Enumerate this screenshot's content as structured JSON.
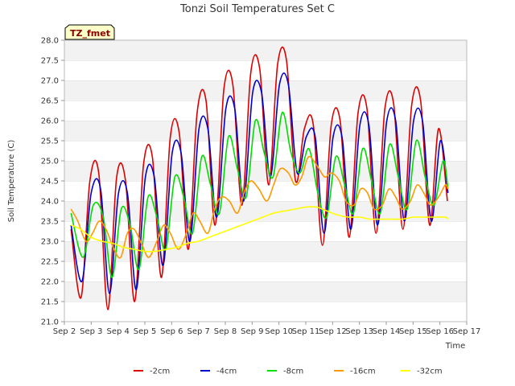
{
  "chart_data": {
    "type": "line",
    "title": "Tonzi Soil Temperatures Set C",
    "xlabel": "Time",
    "ylabel": "Soil Temperature (C)",
    "annotation": "TZ_fmet",
    "xlim": [
      2,
      17
    ],
    "ylim": [
      21.0,
      28.0
    ],
    "x_ticks": [
      2,
      3,
      4,
      5,
      6,
      7,
      8,
      9,
      10,
      11,
      12,
      13,
      14,
      15,
      16,
      17
    ],
    "x_tick_labels": [
      "Sep 2",
      "Sep 3",
      "Sep 4",
      "Sep 5",
      "Sep 6",
      "Sep 7",
      "Sep 8",
      "Sep 9",
      "Sep 10",
      "Sep 11",
      "Sep 12",
      "Sep 13",
      "Sep 14",
      "Sep 15",
      "Sep 16",
      "Sep 17"
    ],
    "y_ticks": [
      21.0,
      21.5,
      22.0,
      22.5,
      23.0,
      23.5,
      24.0,
      24.5,
      25.0,
      25.5,
      26.0,
      26.5,
      27.0,
      27.5,
      28.0
    ],
    "y_tick_labels": [
      "21.0",
      "21.5",
      "22.0",
      "22.5",
      "23.0",
      "23.5",
      "24.0",
      "24.5",
      "25.0",
      "25.5",
      "26.0",
      "26.5",
      "27.0",
      "27.5",
      "28.0"
    ],
    "grid": "horizontal bands",
    "legend_position": "bottom",
    "series": [
      {
        "name": "-2cm",
        "color": "#dd0000",
        "x": [
          2.25,
          2.62,
          2.95,
          3.28,
          3.62,
          3.95,
          4.28,
          4.62,
          4.95,
          5.28,
          5.62,
          5.95,
          6.28,
          6.62,
          6.95,
          7.28,
          7.62,
          7.95,
          8.28,
          8.62,
          8.95,
          9.28,
          9.62,
          9.95,
          10.28,
          10.62,
          10.95,
          11.28,
          11.62,
          11.95,
          12.28,
          12.62,
          12.95,
          13.28,
          13.62,
          13.95,
          14.28,
          14.62,
          14.95,
          15.28,
          15.62,
          15.95,
          16.28
        ],
        "y": [
          23.3,
          21.6,
          24.5,
          24.7,
          21.3,
          24.6,
          24.5,
          21.5,
          24.9,
          25.1,
          22.1,
          25.6,
          25.7,
          22.8,
          26.2,
          26.5,
          23.4,
          26.8,
          26.9,
          23.9,
          27.2,
          27.3,
          24.4,
          27.4,
          27.5,
          24.5,
          25.8,
          25.9,
          22.9,
          25.9,
          26.0,
          23.1,
          26.2,
          26.3,
          23.2,
          26.3,
          26.4,
          23.3,
          26.4,
          26.5,
          23.4,
          25.8,
          24.0
        ]
      },
      {
        "name": "-4cm",
        "color": "#0000cc",
        "x": [
          2.25,
          2.65,
          3.0,
          3.35,
          3.68,
          4.02,
          4.35,
          4.68,
          5.02,
          5.35,
          5.68,
          6.02,
          6.35,
          6.68,
          7.02,
          7.35,
          7.68,
          8.02,
          8.35,
          8.68,
          9.02,
          9.35,
          9.68,
          10.02,
          10.35,
          10.68,
          11.02,
          11.35,
          11.68,
          12.02,
          12.35,
          12.68,
          13.02,
          13.35,
          13.68,
          14.02,
          14.35,
          14.68,
          15.02,
          15.35,
          15.68,
          16.02,
          16.3
        ],
        "y": [
          23.4,
          22.0,
          24.2,
          24.3,
          21.7,
          24.2,
          24.2,
          21.8,
          24.6,
          24.6,
          22.4,
          25.2,
          25.2,
          23.0,
          25.8,
          25.8,
          23.6,
          26.3,
          26.3,
          24.0,
          26.7,
          26.7,
          24.6,
          26.9,
          26.9,
          24.7,
          25.6,
          25.6,
          23.2,
          25.6,
          25.6,
          23.3,
          25.9,
          25.9,
          23.4,
          26.0,
          26.0,
          23.5,
          26.0,
          26.0,
          23.5,
          25.5,
          24.2
        ]
      },
      {
        "name": "-8cm",
        "color": "#00dd00",
        "x": [
          2.25,
          2.7,
          3.08,
          3.45,
          3.78,
          4.12,
          4.45,
          4.78,
          5.12,
          5.45,
          5.78,
          6.12,
          6.45,
          6.78,
          7.12,
          7.45,
          7.78,
          8.12,
          8.45,
          8.78,
          9.12,
          9.45,
          9.78,
          10.12,
          10.45,
          10.78,
          11.12,
          11.45,
          11.78,
          12.12,
          12.45,
          12.78,
          13.12,
          13.45,
          13.78,
          14.12,
          14.45,
          14.78,
          15.12,
          15.45,
          15.78,
          16.12,
          16.3
        ],
        "y": [
          23.7,
          22.6,
          23.9,
          23.6,
          22.1,
          23.8,
          23.4,
          22.3,
          24.1,
          23.6,
          22.8,
          24.6,
          24.1,
          23.2,
          25.1,
          24.4,
          23.7,
          25.6,
          24.8,
          24.1,
          26.0,
          25.2,
          24.6,
          26.2,
          25.2,
          24.7,
          25.3,
          24.2,
          23.6,
          25.1,
          24.4,
          23.7,
          25.3,
          24.5,
          23.7,
          25.4,
          24.6,
          23.8,
          25.5,
          24.6,
          23.9,
          25.0,
          24.3
        ]
      },
      {
        "name": "-16cm",
        "color": "#ff9900",
        "x": [
          2.25,
          2.5,
          2.8,
          3.05,
          3.3,
          3.55,
          3.85,
          4.1,
          4.35,
          4.6,
          4.9,
          5.15,
          5.45,
          5.7,
          5.95,
          6.25,
          6.55,
          6.8,
          7.05,
          7.35,
          7.6,
          7.85,
          8.15,
          8.45,
          8.7,
          8.95,
          9.25,
          9.55,
          9.8,
          10.05,
          10.35,
          10.6,
          10.85,
          11.1,
          11.4,
          11.7,
          11.95,
          12.25,
          12.5,
          12.8,
          13.05,
          13.3,
          13.55,
          13.85,
          14.1,
          14.35,
          14.6,
          14.9,
          15.15,
          15.4,
          15.65,
          15.95,
          16.2,
          16.3
        ],
        "y": [
          23.8,
          23.5,
          23.0,
          23.2,
          23.5,
          23.3,
          22.8,
          22.6,
          23.2,
          23.3,
          22.9,
          22.6,
          23.0,
          23.4,
          23.2,
          22.8,
          23.2,
          23.7,
          23.5,
          23.2,
          23.8,
          24.1,
          24.0,
          23.7,
          24.2,
          24.5,
          24.3,
          24.0,
          24.4,
          24.8,
          24.7,
          24.4,
          24.6,
          25.1,
          24.9,
          24.6,
          24.7,
          24.5,
          24.0,
          23.9,
          24.3,
          24.2,
          23.8,
          23.9,
          24.3,
          24.1,
          23.8,
          24.0,
          24.4,
          24.2,
          23.9,
          24.1,
          24.4,
          24.3
        ]
      },
      {
        "name": "-32cm",
        "color": "#ffff00",
        "x": [
          2.25,
          2.6,
          3.0,
          3.4,
          3.8,
          4.2,
          4.6,
          5.0,
          5.4,
          5.8,
          6.2,
          6.6,
          7.0,
          7.4,
          7.8,
          8.2,
          8.6,
          9.0,
          9.4,
          9.8,
          10.2,
          10.6,
          11.0,
          11.4,
          11.8,
          12.2,
          12.6,
          13.0,
          13.4,
          13.8,
          14.2,
          14.6,
          15.0,
          15.4,
          15.8,
          16.2,
          16.3
        ],
        "y": [
          23.4,
          23.3,
          23.1,
          23.0,
          22.95,
          22.85,
          22.8,
          22.75,
          22.75,
          22.8,
          22.85,
          22.95,
          23.0,
          23.1,
          23.2,
          23.3,
          23.4,
          23.5,
          23.6,
          23.7,
          23.75,
          23.8,
          23.85,
          23.85,
          23.75,
          23.65,
          23.6,
          23.6,
          23.55,
          23.55,
          23.55,
          23.55,
          23.6,
          23.6,
          23.6,
          23.6,
          23.55
        ]
      }
    ]
  }
}
